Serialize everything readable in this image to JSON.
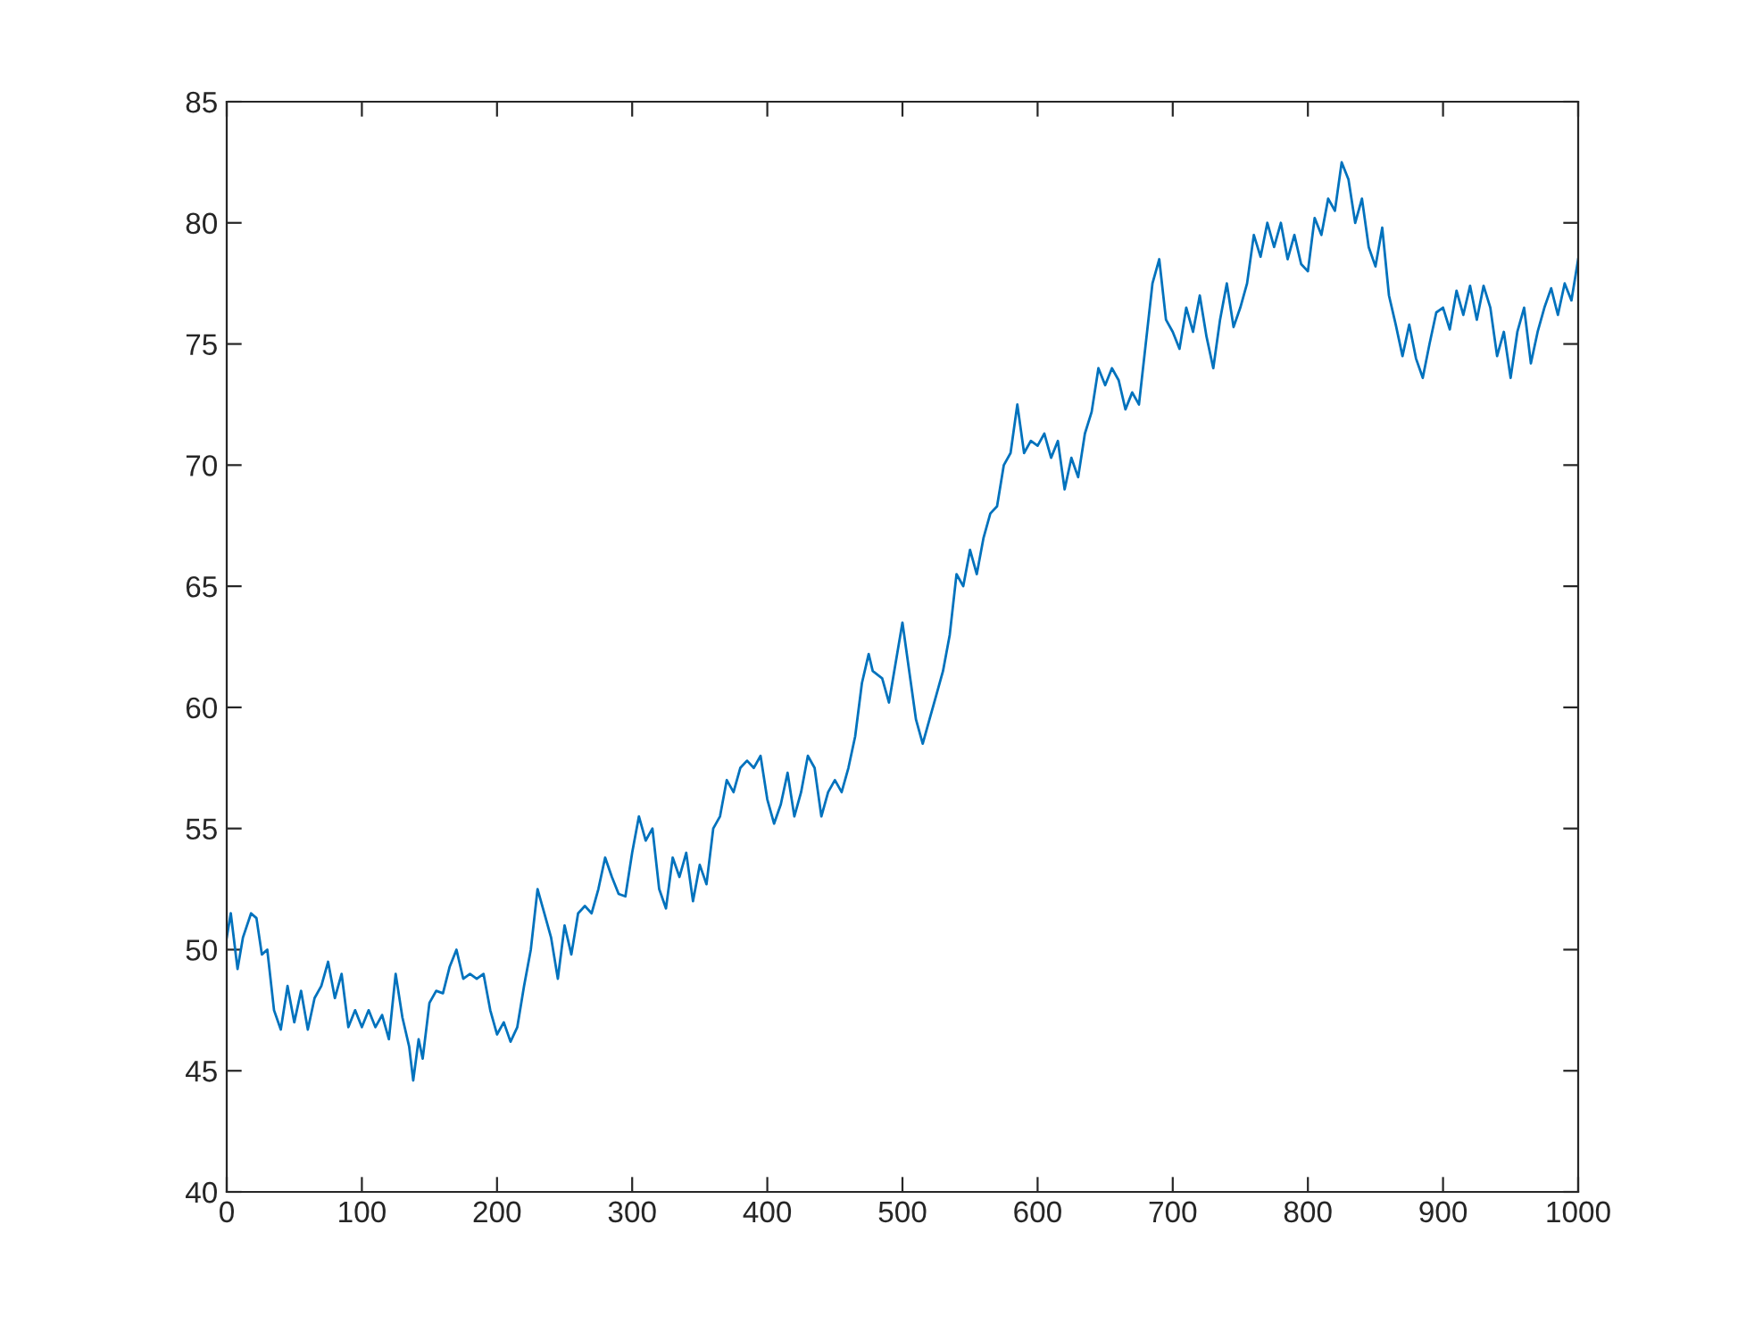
{
  "chart_data": {
    "type": "line",
    "x": [
      0,
      3,
      8,
      12,
      18,
      22,
      26,
      30,
      35,
      40,
      45,
      50,
      55,
      60,
      65,
      70,
      75,
      80,
      85,
      90,
      95,
      100,
      105,
      110,
      115,
      120,
      125,
      130,
      135,
      138,
      142,
      145,
      150,
      155,
      160,
      165,
      170,
      175,
      180,
      185,
      190,
      195,
      200,
      205,
      210,
      215,
      220,
      225,
      230,
      235,
      240,
      245,
      250,
      255,
      260,
      265,
      270,
      275,
      280,
      285,
      290,
      295,
      300,
      305,
      310,
      315,
      320,
      325,
      330,
      335,
      340,
      345,
      350,
      355,
      360,
      365,
      370,
      375,
      380,
      385,
      390,
      395,
      400,
      405,
      410,
      415,
      420,
      425,
      430,
      435,
      440,
      445,
      450,
      455,
      460,
      465,
      470,
      475,
      478,
      485,
      490,
      500,
      510,
      515,
      520,
      525,
      530,
      535,
      540,
      545,
      550,
      555,
      560,
      565,
      570,
      575,
      580,
      585,
      590,
      595,
      600,
      605,
      610,
      615,
      620,
      625,
      630,
      635,
      640,
      645,
      650,
      655,
      660,
      665,
      670,
      675,
      680,
      685,
      690,
      695,
      700,
      705,
      710,
      715,
      720,
      725,
      730,
      735,
      740,
      745,
      750,
      755,
      760,
      765,
      770,
      775,
      780,
      785,
      790,
      795,
      800,
      805,
      810,
      815,
      820,
      825,
      830,
      835,
      840,
      845,
      850,
      855,
      860,
      865,
      870,
      875,
      880,
      885,
      890,
      895,
      900,
      905,
      910,
      915,
      920,
      925,
      930,
      935,
      940,
      945,
      950,
      955,
      960,
      965,
      970,
      975,
      980,
      985,
      990,
      995,
      1000
    ],
    "series": [
      {
        "color": "#0072bd",
        "values": [
          50.5,
          51.5,
          49.2,
          50.5,
          51.5,
          51.3,
          49.8,
          50,
          47.5,
          46.7,
          48.5,
          47,
          48.3,
          46.7,
          48,
          48.5,
          49.5,
          48,
          49,
          46.8,
          47.5,
          46.8,
          47.5,
          46.8,
          47.3,
          46.3,
          49,
          47.2,
          46,
          44.6,
          46.3,
          45.5,
          47.8,
          48.3,
          48.2,
          49.3,
          50,
          48.8,
          49,
          48.8,
          49,
          47.5,
          46.5,
          47,
          46.2,
          46.8,
          48.5,
          50,
          52.5,
          51.5,
          50.5,
          48.8,
          51,
          49.8,
          51.5,
          51.8,
          51.5,
          52.5,
          53.8,
          53,
          52.3,
          52.2,
          54,
          55.5,
          54.5,
          55,
          52.5,
          51.7,
          53.8,
          53,
          54,
          52,
          53.5,
          52.7,
          55,
          55.5,
          57,
          56.5,
          57.5,
          57.8,
          57.5,
          58,
          56.2,
          55.2,
          56,
          57.3,
          55.5,
          56.5,
          58,
          57.5,
          55.5,
          56.5,
          57,
          56.5,
          57.5,
          58.8,
          61,
          62.2,
          61.5,
          61.2,
          60.2,
          63.5,
          59.5,
          58.5,
          59.5,
          60.5,
          61.5,
          63,
          65.5,
          65,
          66.5,
          65.5,
          67,
          68,
          68.3,
          70,
          70.5,
          72.5,
          70.5,
          71,
          70.8,
          71.3,
          70.3,
          71,
          69,
          70.3,
          69.5,
          71.3,
          72.2,
          74,
          73.3,
          74,
          73.5,
          72.3,
          73,
          72.5,
          75,
          77.5,
          78.5,
          76,
          75.5,
          74.8,
          76.5,
          75.5,
          77,
          75.3,
          74,
          76,
          77.5,
          75.7,
          76.5,
          77.5,
          79.5,
          78.6,
          80,
          79,
          80,
          78.5,
          79.5,
          78.3,
          78,
          80.2,
          79.5,
          81,
          80.5,
          82.5,
          81.8,
          80,
          81,
          79,
          78.2,
          79.8,
          77,
          75.8,
          74.5,
          75.8,
          74.4,
          73.6,
          75,
          76.3,
          76.5,
          75.6,
          77.2,
          76.2,
          77.4,
          76,
          77.4,
          76.5,
          74.5,
          75.5,
          73.6,
          75.5,
          76.5,
          74.2,
          75.5,
          76.5,
          77.3,
          76.2,
          77.5,
          76.8,
          78.5
        ]
      }
    ],
    "xlim": [
      0,
      1000
    ],
    "xticks": [
      0,
      100,
      200,
      300,
      400,
      500,
      600,
      700,
      800,
      900,
      1000
    ],
    "ylim": [
      40,
      85
    ],
    "yticks": [
      40,
      45,
      50,
      55,
      60,
      65,
      70,
      75,
      80,
      85
    ],
    "grid": false,
    "legend": false,
    "marker": "none",
    "line_style": "solid"
  }
}
